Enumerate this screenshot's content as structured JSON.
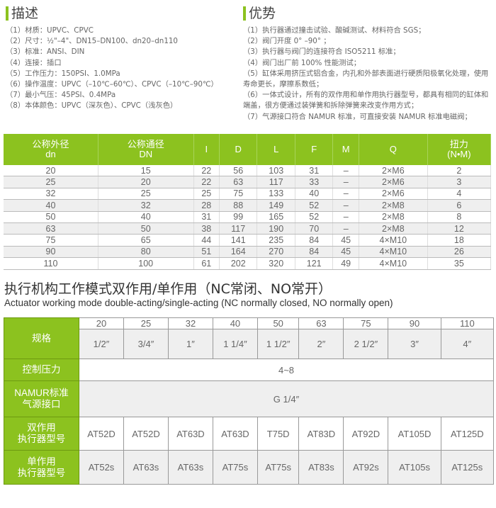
{
  "description": {
    "title": "描述",
    "items": [
      "（1）材质：UPVC、CPVC",
      "（2）尺寸：½\"–4\"、DN15–DN100、dn20–dn110",
      "（3）标准：ANSI、DIN",
      "（4）连接：插口",
      "（5）工作压力：150PSI、1.0MPa",
      "（6）操作温度：UPVC（–10℃–60℃）、CPVC（–10℃–90℃）",
      "（7）最小气压：45PSI、0.4MPa",
      "（8）本体颜色：UPVC（深灰色）、CPVC（浅灰色）"
    ]
  },
  "advantages": {
    "title": "优势",
    "items": [
      "（1）执行器通过撞击试验、酸碱测试、材料符合 SGS；",
      "（2）阀门开度 0° –90° ；",
      "（3）执行器与阀门的连接符合 ISO5211 标准；",
      "（4）阀门出厂前 100% 性能测试；",
      "（5）缸体采用挤压式铝合金，内孔和外部表面进行硬质阳极氧化处理，使用寿命更长，摩擦系数低；",
      "（6）一体式设计，所有的双作用和单作用执行器型号，都具有相同的缸体和端盖，很方便通过装弹簧和拆除弹簧来改变作用方式；",
      "（7）气源接口符合 NAMUR 标准，可直接安装 NAMUR 标准电磁阀；"
    ]
  },
  "dim_table": {
    "headers": [
      [
        "公称外径",
        "dn"
      ],
      [
        "公称通径",
        "DN"
      ],
      [
        "I",
        ""
      ],
      [
        "D",
        ""
      ],
      [
        "L",
        ""
      ],
      [
        "F",
        ""
      ],
      [
        "M",
        ""
      ],
      [
        "Q",
        ""
      ],
      [
        "扭力",
        "(N•M)"
      ]
    ],
    "rows": [
      [
        "20",
        "15",
        "22",
        "56",
        "103",
        "31",
        "–",
        "2×M6",
        "2"
      ],
      [
        "25",
        "20",
        "22",
        "63",
        "117",
        "33",
        "–",
        "2×M6",
        "3"
      ],
      [
        "32",
        "25",
        "25",
        "75",
        "133",
        "40",
        "–",
        "2×M6",
        "4"
      ],
      [
        "40",
        "32",
        "28",
        "88",
        "149",
        "52",
        "–",
        "2×M8",
        "6"
      ],
      [
        "50",
        "40",
        "31",
        "99",
        "165",
        "52",
        "–",
        "2×M8",
        "8"
      ],
      [
        "63",
        "50",
        "38",
        "117",
        "190",
        "70",
        "–",
        "2×M8",
        "12"
      ],
      [
        "75",
        "65",
        "44",
        "141",
        "235",
        "84",
        "45",
        "4×M10",
        "18"
      ],
      [
        "90",
        "80",
        "51",
        "164",
        "270",
        "84",
        "45",
        "4×M10",
        "26"
      ],
      [
        "110",
        "100",
        "61",
        "202",
        "320",
        "121",
        "49",
        "4×M10",
        "35"
      ]
    ]
  },
  "actuator": {
    "title_cn": "执行机构工作模式双作用/单作用（NC常闭、NO常开）",
    "title_en": "Actuator working mode double-acting/single-acting (NC normally closed, NO normally open)",
    "spec_label": "规格",
    "dn": [
      "20",
      "25",
      "32",
      "40",
      "50",
      "63",
      "75",
      "90",
      "110"
    ],
    "inch": [
      "1/2″",
      "3/4″",
      "1″",
      "1 1/4″",
      "1 1/2″",
      "2″",
      "2 1/2″",
      "3″",
      "4″"
    ],
    "pressure_label": "控制压力",
    "pressure": "4~8",
    "namur_label": [
      "NAMUR标准",
      "气源接口"
    ],
    "namur": "G 1/4″",
    "double_label": [
      "双作用",
      "执行器型号"
    ],
    "double": [
      "AT52D",
      "AT52D",
      "AT63D",
      "AT63D",
      "T75D",
      "AT83D",
      "AT92D",
      "AT105D",
      "AT125D"
    ],
    "single_label": [
      "单作用",
      "执行器型号"
    ],
    "single": [
      "AT52s",
      "AT63s",
      "AT63s",
      "AT75s",
      "AT75s",
      "AT83s",
      "AT92s",
      "AT105s",
      "AT125s"
    ]
  },
  "colors": {
    "accent": "#8cc21f"
  }
}
